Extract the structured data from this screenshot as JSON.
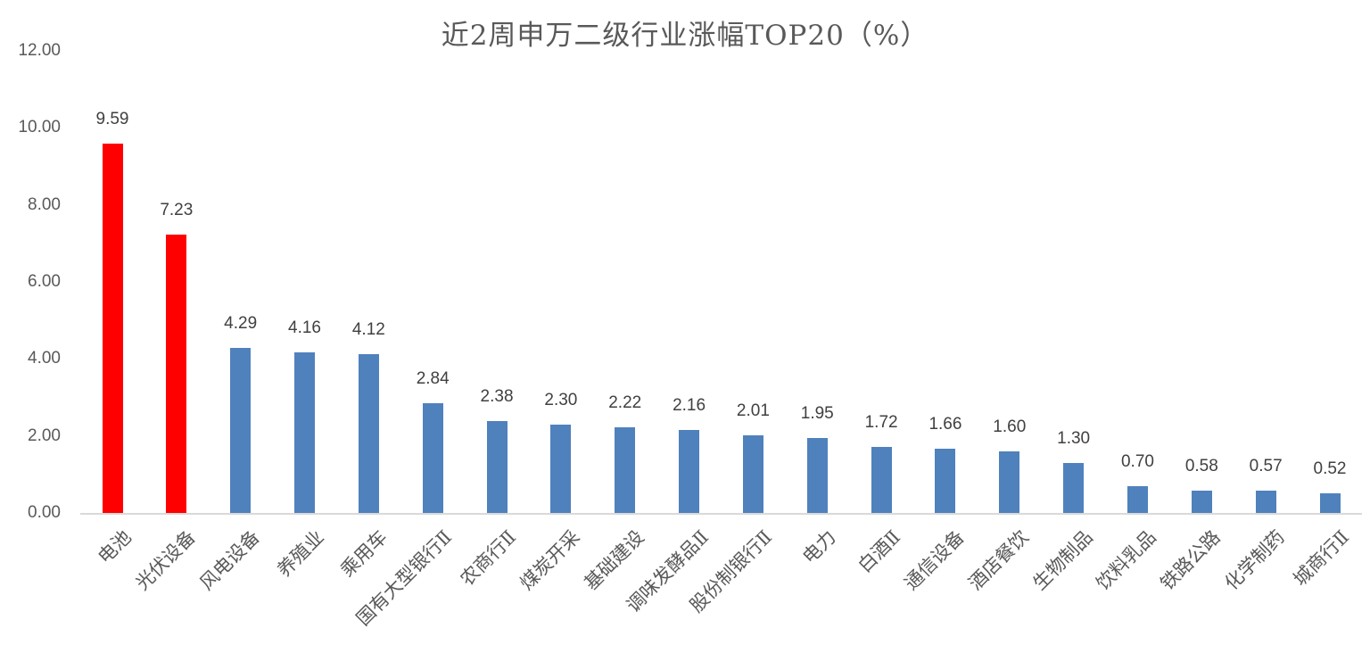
{
  "chart_data": {
    "type": "bar",
    "title": "近2周申万二级行业涨幅TOP20（%）",
    "xlabel": "",
    "ylabel": "",
    "ylim": [
      0,
      12
    ],
    "yticks": [
      "0.00",
      "2.00",
      "4.00",
      "6.00",
      "8.00",
      "10.00",
      "12.00"
    ],
    "grid": false,
    "legend": null,
    "categories": [
      "电池",
      "光伏设备",
      "风电设备",
      "养殖业",
      "乘用车",
      "国有大型银行Ⅱ",
      "农商行Ⅱ",
      "煤炭开采",
      "基础建设",
      "调味发酵品Ⅱ",
      "股份制银行Ⅱ",
      "电力",
      "白酒Ⅱ",
      "通信设备",
      "酒店餐饮",
      "生物制品",
      "饮料乳品",
      "铁路公路",
      "化学制药",
      "城商行Ⅱ"
    ],
    "values": [
      9.59,
      7.23,
      4.29,
      4.16,
      4.12,
      2.84,
      2.38,
      2.3,
      2.22,
      2.16,
      2.01,
      1.95,
      1.72,
      1.66,
      1.6,
      1.3,
      0.7,
      0.58,
      0.57,
      0.52
    ],
    "value_labels": [
      "9.59",
      "7.23",
      "4.29",
      "4.16",
      "4.12",
      "2.84",
      "2.38",
      "2.30",
      "2.22",
      "2.16",
      "2.01",
      "1.95",
      "1.72",
      "1.66",
      "1.60",
      "1.30",
      "0.70",
      "0.58",
      "0.57",
      "0.52"
    ],
    "highlight_count": 2,
    "colors": {
      "highlight": "#ff0000",
      "default": "#4f81bd",
      "axis": "#d9d9d9",
      "text": "#595959"
    }
  }
}
